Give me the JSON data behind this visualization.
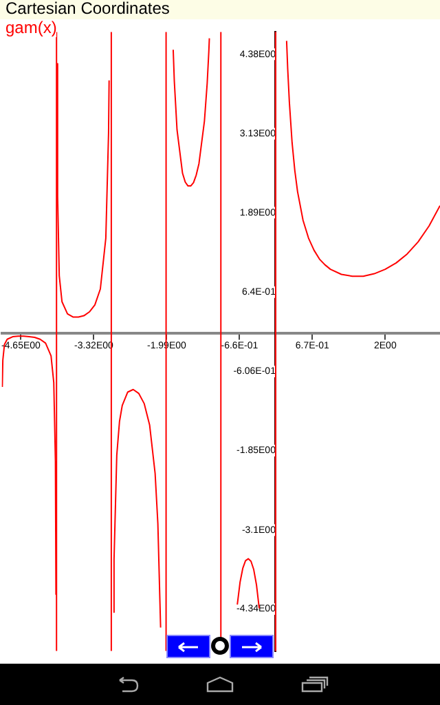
{
  "chart_data": {
    "type": "line",
    "title": "Cartesian Coordinates",
    "legend": "top left",
    "marker": "none",
    "xlim": [
      -5,
      3
    ],
    "ylim": [
      -5,
      4.73
    ],
    "xticks": [
      {
        "value": -4.65,
        "label": "-4.65E00"
      },
      {
        "value": -3.32,
        "label": "-3.32E00"
      },
      {
        "value": -1.99,
        "label": "-1.99E00"
      },
      {
        "value": -0.66,
        "label": "-6.6E-01"
      },
      {
        "value": 0.67,
        "label": "6.7E-01"
      },
      {
        "value": 2,
        "label": "2E00"
      }
    ],
    "yticks": [
      {
        "value": 4.38,
        "label": "4.38E00"
      },
      {
        "value": 3.13,
        "label": "3.13E00"
      },
      {
        "value": 1.89,
        "label": "1.89E00"
      },
      {
        "value": 0.64,
        "label": "6.4E-01"
      },
      {
        "value": -0.606,
        "label": "-6.06E-01"
      },
      {
        "value": -1.85,
        "label": "-1.85E00"
      },
      {
        "value": -3.1,
        "label": "-3.1E00"
      },
      {
        "value": -4.34,
        "label": "-4.34E00"
      }
    ],
    "ref_lines": [
      {
        "axis": "x",
        "value": -4,
        "color": "#ff0000"
      },
      {
        "axis": "x",
        "value": -3,
        "color": "#ff0000"
      },
      {
        "axis": "x",
        "value": -2,
        "color": "#ff0000"
      },
      {
        "axis": "x",
        "value": -1,
        "color": "#ff0000"
      },
      {
        "axis": "x",
        "value": 0,
        "color": "#ff0000"
      }
    ],
    "series": [
      {
        "name": "gam(x)",
        "color": "#ff0000",
        "x": [
          -4.99,
          -4.98,
          -4.95,
          -4.9,
          -4.8,
          -4.7,
          -4.6,
          -4.5,
          -4.4,
          -4.3,
          -4.2,
          -4.1,
          -4.05,
          -4.02,
          -4.01,
          -4,
          -3.99,
          -3.98,
          -3.95,
          -3.9,
          -3.8,
          -3.7,
          -3.6,
          -3.5,
          -3.4,
          -3.3,
          -3.2,
          -3.1,
          -3.05,
          -3.04,
          -3,
          -2.96,
          -2.95,
          -2.9,
          -2.85,
          -2.8,
          -2.7,
          -2.6,
          -2.5,
          -2.4,
          -2.3,
          -2.2,
          -2.15,
          -2.1,
          -2,
          -1.87,
          -1.85,
          -1.8,
          -1.7,
          -1.65,
          -1.6,
          -1.55,
          -1.5,
          -1.45,
          -1.4,
          -1.3,
          -1.25,
          -1.22,
          -1.21,
          -1,
          -0.75,
          -0.7,
          -0.65,
          -0.6,
          -0.55,
          -0.5,
          -0.45,
          -0.4,
          -0.35,
          -0.3,
          -0.25,
          0,
          0.2,
          0.22,
          0.25,
          0.3,
          0.35,
          0.4,
          0.5,
          0.6,
          0.7,
          0.8,
          0.9,
          1,
          1.2,
          1.4,
          1.46,
          1.6,
          1.8,
          2,
          2.2,
          2.4,
          2.6,
          2.8,
          3
        ],
        "values": [
          -0.85,
          -0.43,
          -0.18,
          -0.1,
          -0.06,
          -0.05,
          -0.05,
          -0.06,
          -0.07,
          -0.1,
          -0.16,
          -0.36,
          -0.78,
          -2.02,
          -4.11,
          null,
          4.23,
          2.15,
          0.9,
          0.49,
          0.3,
          0.25,
          0.25,
          0.27,
          0.33,
          0.44,
          0.69,
          1.49,
          3.14,
          3.97,
          null,
          -4.39,
          -3.56,
          -1.92,
          -1.39,
          -1.14,
          -0.93,
          -0.89,
          -0.95,
          -1.11,
          -1.45,
          -2.21,
          -3,
          -4.63,
          null,
          4.45,
          3.96,
          3.19,
          2.51,
          2.37,
          2.31,
          2.31,
          2.36,
          2.48,
          2.66,
          3.33,
          3.92,
          4.42,
          4.63,
          null,
          null,
          -4.27,
          -3.92,
          -3.7,
          -3.58,
          -3.55,
          -3.59,
          -3.72,
          -3.96,
          -4.33,
          null,
          null,
          4.59,
          4.15,
          3.63,
          2.99,
          2.55,
          2.22,
          1.77,
          1.49,
          1.3,
          1.16,
          1.07,
          1,
          0.92,
          0.89,
          0.89,
          0.89,
          0.93,
          1,
          1.1,
          1.24,
          1.43,
          1.68,
          2
        ]
      }
    ]
  }
}
